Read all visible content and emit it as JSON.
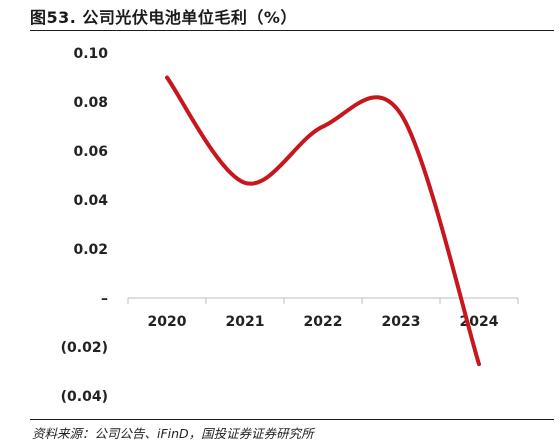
{
  "title": "图53. 公司光伏电池单位毛利（%）",
  "source": "资料来源：公司公告、iFinD，国投证券证券研究所",
  "chart_data": {
    "type": "line",
    "title": "图53. 公司光伏电池单位毛利（%）",
    "xlabel": "",
    "ylabel": "",
    "categories": [
      "2020",
      "2021",
      "2022",
      "2023",
      "2024"
    ],
    "series": [
      {
        "values": [
          0.09,
          0.047,
          0.07,
          0.075,
          -0.027
        ]
      }
    ],
    "ylim": [
      -0.04,
      0.1
    ],
    "yticks": [
      -0.04,
      -0.02,
      0,
      0.02,
      0.04,
      0.06,
      0.08,
      0.1
    ],
    "ytick_labels": [
      "(0.04)",
      "(0.02)",
      "–",
      "0.02",
      "0.04",
      "0.06",
      "0.08",
      "0.10"
    ],
    "smooth": true,
    "grid": false,
    "legend": "none",
    "line_color": "#c8161d",
    "axis_color": "#bfbfbf"
  }
}
